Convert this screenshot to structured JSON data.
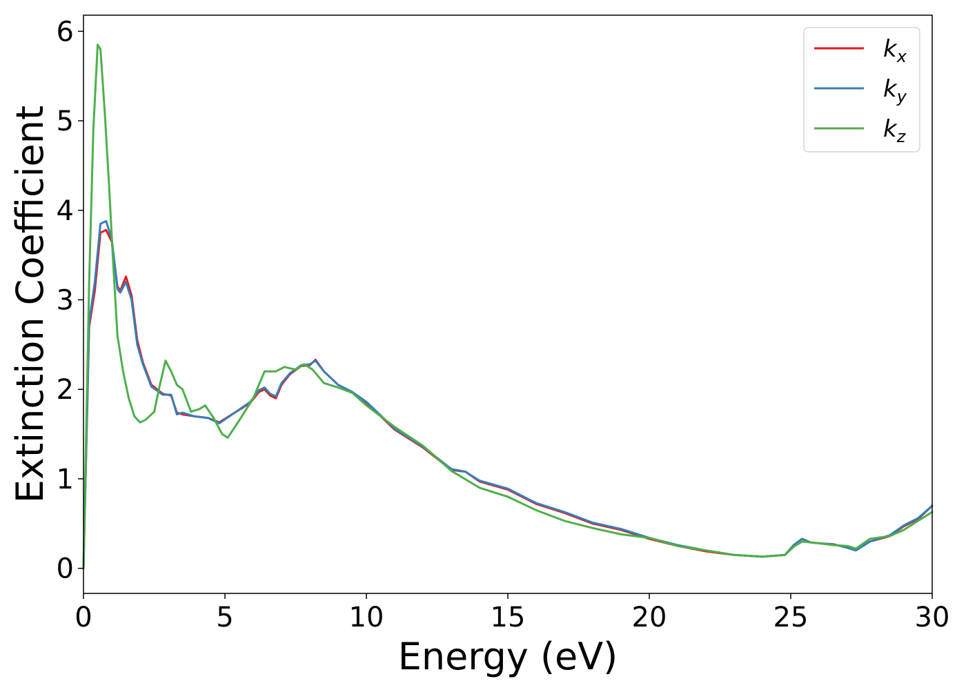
{
  "chart_data": {
    "type": "line",
    "xlabel": "Energy (eV)",
    "ylabel": "Extinction Coefficient",
    "xlim": [
      0,
      30
    ],
    "ylim": [
      -0.28,
      6.18
    ],
    "xticks": [
      0,
      5,
      10,
      15,
      20,
      25,
      30
    ],
    "yticks": [
      0,
      1,
      2,
      3,
      4,
      5,
      6
    ],
    "grid": false,
    "legend_position": "top-right",
    "series": [
      {
        "name": "k",
        "subscript": "x",
        "color": "#e41a1c",
        "x": [
          0,
          0.2,
          0.4,
          0.6,
          0.8,
          1.0,
          1.2,
          1.3,
          1.5,
          1.7,
          1.9,
          2.1,
          2.4,
          2.8,
          3.1,
          3.3,
          3.5,
          3.9,
          4.4,
          4.8,
          5.3,
          5.9,
          6.2,
          6.4,
          6.6,
          6.8,
          7.0,
          7.3,
          7.7,
          8.0,
          8.2,
          8.5,
          9.0,
          9.5,
          10.0,
          11.0,
          12.0,
          13.0,
          13.5,
          14.0,
          15.0,
          16.0,
          17.0,
          18.0,
          19.0,
          20.0,
          21.0,
          22.0,
          23.0,
          24.0,
          24.8,
          25.1,
          25.4,
          25.7,
          26.0,
          26.5,
          27.0,
          27.3,
          27.8,
          28.5,
          29.0,
          29.5,
          30.0
        ],
        "values": [
          0.0,
          2.7,
          3.1,
          3.75,
          3.78,
          3.65,
          3.15,
          3.1,
          3.26,
          3.05,
          2.55,
          2.3,
          2.05,
          1.95,
          1.93,
          1.74,
          1.72,
          1.7,
          1.68,
          1.63,
          1.73,
          1.85,
          1.97,
          2.0,
          1.93,
          1.9,
          2.05,
          2.17,
          2.26,
          2.27,
          2.33,
          2.2,
          2.05,
          1.97,
          1.85,
          1.55,
          1.35,
          1.1,
          1.08,
          0.97,
          0.88,
          0.72,
          0.62,
          0.5,
          0.43,
          0.33,
          0.25,
          0.19,
          0.15,
          0.13,
          0.15,
          0.25,
          0.33,
          0.29,
          0.28,
          0.27,
          0.23,
          0.2,
          0.3,
          0.36,
          0.47,
          0.55,
          0.7
        ]
      },
      {
        "name": "k",
        "subscript": "y",
        "color": "#377eb8",
        "x": [
          0,
          0.2,
          0.4,
          0.6,
          0.8,
          1.0,
          1.2,
          1.3,
          1.5,
          1.7,
          1.9,
          2.1,
          2.4,
          2.8,
          3.1,
          3.3,
          3.5,
          3.9,
          4.4,
          4.8,
          5.3,
          5.9,
          6.2,
          6.4,
          6.6,
          6.8,
          7.0,
          7.3,
          7.7,
          8.0,
          8.2,
          8.5,
          9.0,
          9.5,
          10.0,
          11.0,
          12.0,
          13.0,
          13.5,
          14.0,
          15.0,
          16.0,
          17.0,
          18.0,
          19.0,
          20.0,
          21.0,
          22.0,
          23.0,
          24.0,
          24.8,
          25.1,
          25.4,
          25.7,
          26.0,
          26.5,
          27.0,
          27.3,
          27.8,
          28.5,
          29.0,
          29.5,
          30.0
        ],
        "values": [
          0.0,
          2.75,
          3.2,
          3.85,
          3.88,
          3.68,
          3.12,
          3.08,
          3.2,
          3.0,
          2.5,
          2.28,
          2.03,
          1.94,
          1.94,
          1.72,
          1.74,
          1.7,
          1.68,
          1.62,
          1.73,
          1.86,
          1.99,
          2.02,
          1.95,
          1.92,
          2.07,
          2.18,
          2.27,
          2.28,
          2.32,
          2.2,
          2.05,
          1.97,
          1.86,
          1.56,
          1.36,
          1.11,
          1.08,
          0.98,
          0.89,
          0.73,
          0.63,
          0.51,
          0.44,
          0.34,
          0.26,
          0.2,
          0.15,
          0.13,
          0.15,
          0.26,
          0.33,
          0.29,
          0.28,
          0.27,
          0.23,
          0.2,
          0.3,
          0.37,
          0.48,
          0.56,
          0.7
        ]
      },
      {
        "name": "k",
        "subscript": "z",
        "color": "#4daf4a",
        "x": [
          0,
          0.2,
          0.35,
          0.5,
          0.6,
          0.75,
          0.9,
          1.05,
          1.2,
          1.4,
          1.6,
          1.8,
          2.0,
          2.2,
          2.5,
          2.7,
          2.9,
          3.1,
          3.3,
          3.5,
          3.8,
          4.1,
          4.3,
          4.6,
          4.9,
          5.1,
          5.5,
          6.0,
          6.4,
          6.8,
          7.1,
          7.5,
          7.8,
          8.1,
          8.5,
          9.0,
          9.5,
          10.0,
          11.0,
          12.0,
          13.0,
          14.0,
          15.0,
          16.0,
          17.0,
          18.0,
          19.0,
          20.0,
          21.0,
          22.0,
          23.0,
          24.0,
          24.8,
          25.1,
          25.4,
          25.7,
          26.0,
          26.5,
          27.0,
          27.3,
          27.8,
          28.5,
          29.0,
          29.5,
          30.0
        ],
        "values": [
          0.0,
          3.2,
          4.9,
          5.85,
          5.8,
          5.1,
          4.3,
          3.4,
          2.6,
          2.2,
          1.9,
          1.7,
          1.63,
          1.66,
          1.75,
          2.05,
          2.32,
          2.2,
          2.05,
          2.0,
          1.75,
          1.78,
          1.82,
          1.68,
          1.5,
          1.46,
          1.65,
          1.9,
          2.2,
          2.2,
          2.25,
          2.22,
          2.28,
          2.22,
          2.07,
          2.02,
          1.96,
          1.82,
          1.58,
          1.37,
          1.09,
          0.9,
          0.8,
          0.65,
          0.53,
          0.45,
          0.38,
          0.34,
          0.25,
          0.2,
          0.15,
          0.13,
          0.15,
          0.24,
          0.3,
          0.29,
          0.28,
          0.26,
          0.25,
          0.22,
          0.33,
          0.36,
          0.43,
          0.53,
          0.63
        ]
      }
    ]
  }
}
